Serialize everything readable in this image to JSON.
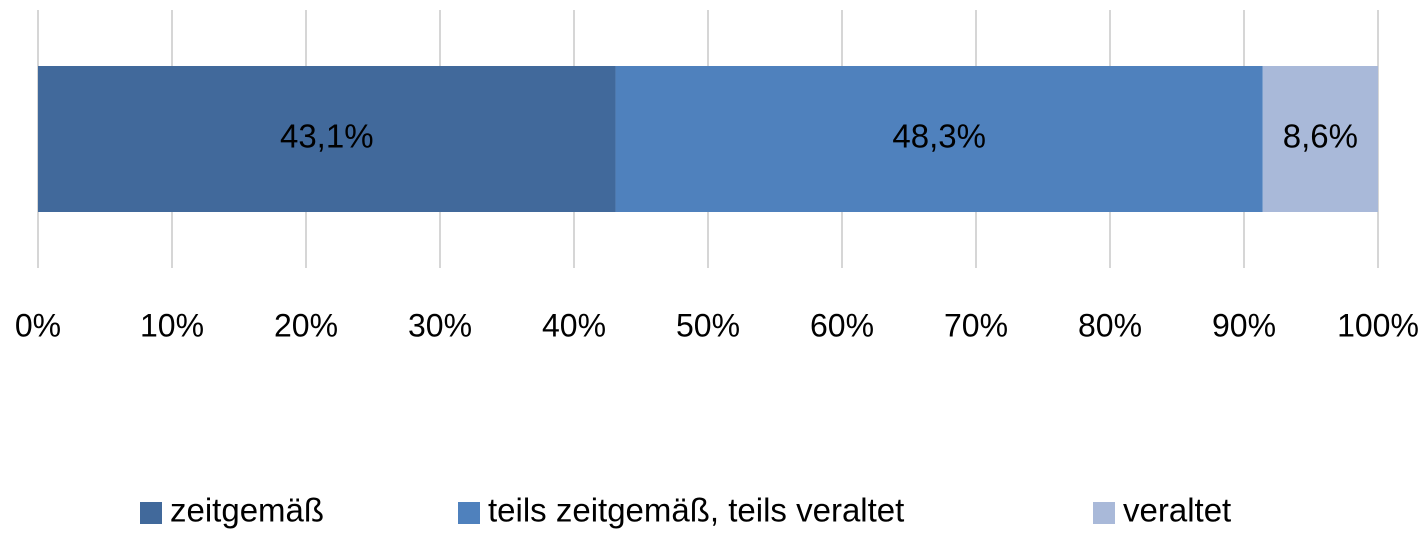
{
  "chart_data": {
    "type": "bar",
    "orientation": "horizontal",
    "stacked": true,
    "series": [
      {
        "name": "zeitgemäß",
        "color": "#41699b",
        "values": [
          43.1
        ],
        "value_labels": [
          "43,1%"
        ]
      },
      {
        "name": "teils zeitgemäß, teils veraltet",
        "color": "#4f81bd",
        "values": [
          48.3
        ],
        "value_labels": [
          "48,3%"
        ]
      },
      {
        "name": "veraltet",
        "color": "#a9b9d9",
        "values": [
          8.6
        ],
        "value_labels": [
          "8,6%"
        ]
      }
    ],
    "xlim": [
      0,
      100
    ],
    "xticks": [
      {
        "value": 0,
        "label": "0%"
      },
      {
        "value": 10,
        "label": "10%"
      },
      {
        "value": 20,
        "label": "20%"
      },
      {
        "value": 30,
        "label": "30%"
      },
      {
        "value": 40,
        "label": "40%"
      },
      {
        "value": 50,
        "label": "50%"
      },
      {
        "value": 60,
        "label": "60%"
      },
      {
        "value": 70,
        "label": "70%"
      },
      {
        "value": 80,
        "label": "80%"
      },
      {
        "value": 90,
        "label": "90%"
      },
      {
        "value": 100,
        "label": "100%"
      }
    ],
    "grid": true,
    "legend": "bottom"
  }
}
